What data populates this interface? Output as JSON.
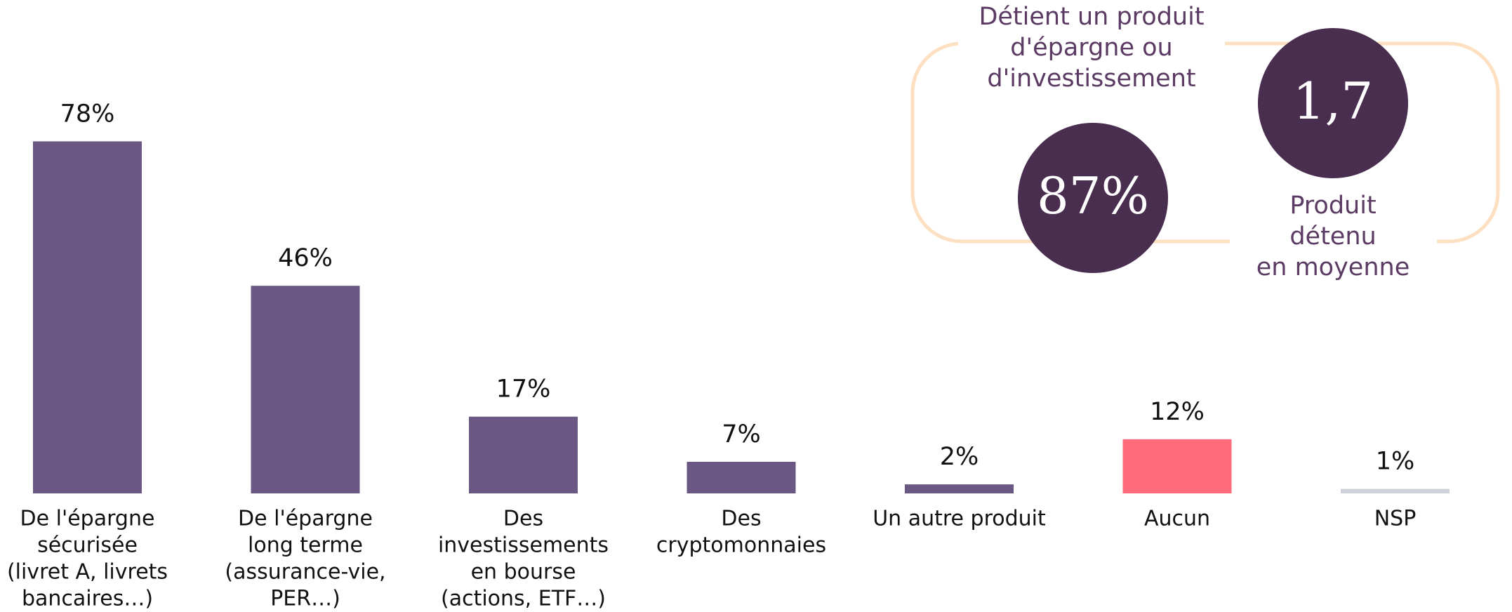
{
  "chart_data": {
    "type": "bar",
    "categories": [
      [
        "De l'épargne",
        "sécurisée",
        "(livret A, livrets",
        "bancaires…)"
      ],
      [
        "De l'épargne",
        "long terme",
        "(assurance-vie,",
        "PER…)"
      ],
      [
        "Des",
        "investissements",
        "en bourse",
        "(actions, ETF…)"
      ],
      [
        "Des",
        "cryptomonnaies"
      ],
      [
        "Un autre produit"
      ],
      [
        "Aucun"
      ],
      [
        "NSP"
      ]
    ],
    "values": [
      78,
      46,
      17,
      7,
      2,
      12,
      1
    ],
    "value_labels": [
      "78%",
      "46%",
      "17%",
      "7%",
      "2%",
      "12%",
      "1%"
    ],
    "colors": [
      "#6a5784",
      "#6a5784",
      "#6a5784",
      "#6a5784",
      "#6a5784",
      "#ff6b7a",
      "#cdd1da"
    ],
    "ylim": [
      0,
      100
    ],
    "callouts": [
      {
        "value_label": "87%",
        "caption": [
          "Détient un produit",
          "d'épargne ou",
          "d'investissement"
        ]
      },
      {
        "value_label": "1,7",
        "caption": [
          "Produit",
          "détenu",
          "en moyenne"
        ]
      }
    ]
  }
}
